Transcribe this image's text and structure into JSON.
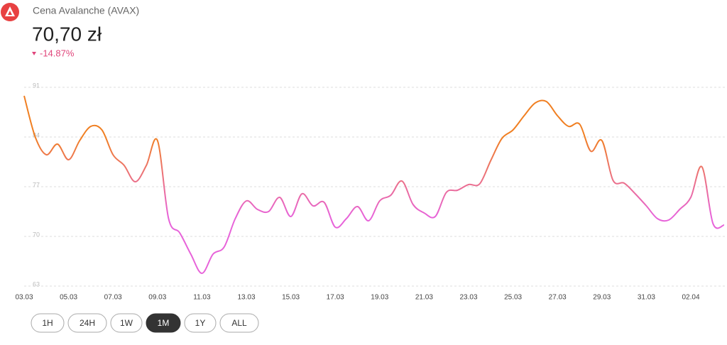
{
  "header": {
    "title": "Cena Avalanche (AVAX)",
    "price": "70,70 zł",
    "change": "-14.87%"
  },
  "chart_data": {
    "type": "line",
    "categories": [
      "03.03",
      null,
      null,
      null,
      "05.03",
      null,
      null,
      null,
      "07.03",
      null,
      null,
      null,
      "09.03",
      null,
      null,
      null,
      "11.03",
      null,
      null,
      null,
      "13.03",
      null,
      null,
      null,
      "15.03",
      null,
      null,
      null,
      "17.03",
      null,
      null,
      null,
      "19.03",
      null,
      null,
      null,
      "21.03",
      null,
      null,
      null,
      "23.03",
      null,
      null,
      null,
      "25.03",
      null,
      null,
      null,
      "27.03",
      null,
      null,
      null,
      "29.03",
      null,
      null,
      null,
      "31.03",
      null,
      null,
      null,
      "02.04",
      null,
      null,
      null
    ],
    "values": [
      89.8,
      84.0,
      81.5,
      83.0,
      80.8,
      83.5,
      85.5,
      85.0,
      81.5,
      80.0,
      77.7,
      80.0,
      83.5,
      72.5,
      70.5,
      67.5,
      64.8,
      67.5,
      68.5,
      72.5,
      75.0,
      73.8,
      73.5,
      75.5,
      72.8,
      76.0,
      74.3,
      74.8,
      71.3,
      72.5,
      74.2,
      72.2,
      75.0,
      75.8,
      77.8,
      74.5,
      73.3,
      72.8,
      76.2,
      76.5,
      77.3,
      77.4,
      80.7,
      83.8,
      85.0,
      87.0,
      88.8,
      89.0,
      87.0,
      85.5,
      85.8,
      82.0,
      83.5,
      77.9,
      77.5,
      76.0,
      74.3,
      72.5,
      72.3,
      73.8,
      75.5,
      79.8,
      71.8,
      71.6
    ],
    "ylim": [
      63,
      91
    ],
    "yticks": [
      63,
      70,
      77,
      84,
      91
    ],
    "grid": true,
    "color_high": "#f07f22",
    "color_low": "#e763d9"
  },
  "buttons": [
    "1H",
    "24H",
    "1W",
    "1M",
    "1Y",
    "ALL"
  ],
  "active_button": "1M"
}
